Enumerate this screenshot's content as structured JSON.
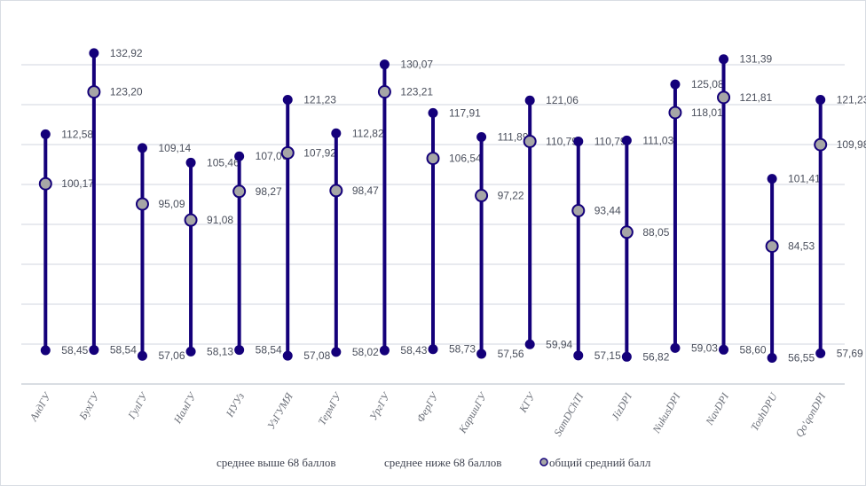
{
  "chart_data": {
    "type": "line",
    "subtype": "high-low with mean marker",
    "categories": [
      "АндГУ",
      "БухГУ",
      "ГулГУ",
      "НамГУ",
      "НУУз",
      "УзГУМЯ",
      "ТермГУ",
      "УргГУ",
      "ФерГУ",
      "КаршиГУ",
      "КГУ",
      "SamDChTI",
      "JizDPI",
      "NukusDPI",
      "NavDPI",
      "ToshDPU",
      "Qo'qonDPI"
    ],
    "series": [
      {
        "name": "среднее выше 68 баллов",
        "values": [
          112.58,
          132.92,
          109.14,
          105.46,
          107.06,
          121.23,
          112.82,
          130.07,
          117.91,
          111.89,
          121.06,
          110.79,
          111.03,
          125.08,
          131.39,
          101.41,
          121.23
        ]
      },
      {
        "name": "среднее ниже 68 баллов",
        "values": [
          58.45,
          58.54,
          57.06,
          58.13,
          58.54,
          57.08,
          58.02,
          58.43,
          58.73,
          57.56,
          59.94,
          57.15,
          56.82,
          59.03,
          58.6,
          56.55,
          57.69
        ]
      },
      {
        "name": "общий средний балл",
        "values": [
          100.17,
          123.2,
          95.09,
          91.08,
          98.27,
          107.92,
          98.47,
          123.21,
          106.54,
          97.22,
          110.79,
          93.44,
          88.05,
          118.01,
          121.81,
          84.53,
          109.98
        ]
      }
    ],
    "data_labels": {
      "high": [
        "112,58",
        "132,92",
        "109,14",
        "105,46",
        "107,06",
        "121,23",
        "112,82",
        "130,07",
        "117,91",
        "111,89",
        "121,06",
        "110,79",
        "111,03",
        "125,08",
        "131,39",
        "101,41",
        "121,23"
      ],
      "low": [
        "58,45",
        "58,54",
        "57,06",
        "58,13",
        "58,54",
        "57,08",
        "58,02",
        "58,43",
        "58,73",
        "57,56",
        "59,94",
        "57,15",
        "56,82",
        "59,03",
        "58,60",
        "56,55",
        "57,69"
      ],
      "mean": [
        "100,17",
        "123,20",
        "95,09",
        "91,08",
        "98,27",
        "107,92",
        "98,47",
        "123,21",
        "106,54",
        "97,22",
        "110,79",
        "93,44",
        "88,05",
        "118,01",
        "121,81",
        "84,53",
        "109,98"
      ]
    },
    "ylim": [
      50,
      140
    ],
    "grid": true,
    "y_axis_labels_shown": false,
    "legend_position": "bottom",
    "colors": {
      "line": "#14007a",
      "marker": "#14007a",
      "mean_fill": "#a6a6a6",
      "grid": "#e1e4ea",
      "label": "#4a4f5c"
    }
  }
}
